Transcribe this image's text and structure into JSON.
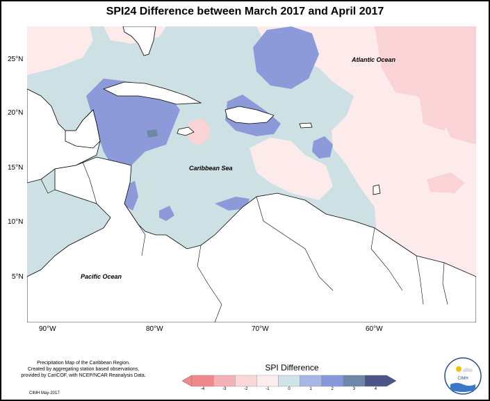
{
  "title": "SPI24 Difference between March 2017 and April 2017",
  "map": {
    "lon_range": [
      -92,
      -52
    ],
    "lat_range": [
      1.5,
      28.5
    ],
    "x_ticks": [
      {
        "lon": -90,
        "label": "90°W"
      },
      {
        "lon": -80,
        "label": "80°W"
      },
      {
        "lon": -70,
        "label": "70°W"
      },
      {
        "lon": -60,
        "label": "60°W"
      }
    ],
    "y_ticks": [
      {
        "lat": 25,
        "label": "25°N"
      },
      {
        "lat": 20,
        "label": "20°N"
      },
      {
        "lat": 15,
        "label": "15°N"
      },
      {
        "lat": 10,
        "label": "10°N"
      },
      {
        "lat": 5,
        "label": "5°N"
      }
    ],
    "labels": {
      "atlantic": "Atlantic Ocean",
      "caribbean": "Caribbean Sea",
      "pacific": "Pacific Ocean"
    }
  },
  "legend": {
    "title": "SPI Difference",
    "ticks": [
      "-4",
      "-3",
      "-2",
      "-1",
      "0",
      "1",
      "2",
      "3",
      "4"
    ],
    "colors": [
      "#f0888c",
      "#f4b2b6",
      "#f9d6d8",
      "#fdeeee",
      "#d0e3e7",
      "#a8b8e6",
      "#8797da",
      "#6c87a8",
      "#4a5488"
    ]
  },
  "footnote": {
    "line1": "Precipitation Map of the Caribbean Region.",
    "line2": "Created by aggregating station based observations,",
    "line3": "provided by CariCOF, with NCEP/NCAR Reanalysis Data.",
    "credit": "CIMH May-2017"
  },
  "logo": {
    "text": "CIMH"
  },
  "colors": {
    "light_blue": "#cde0e4",
    "light_pink": "#fdeaea",
    "pink": "#f9d3d5",
    "blue": "#8c9ada",
    "grey_blue": "#6e8aa0",
    "land": "#ffffff"
  }
}
